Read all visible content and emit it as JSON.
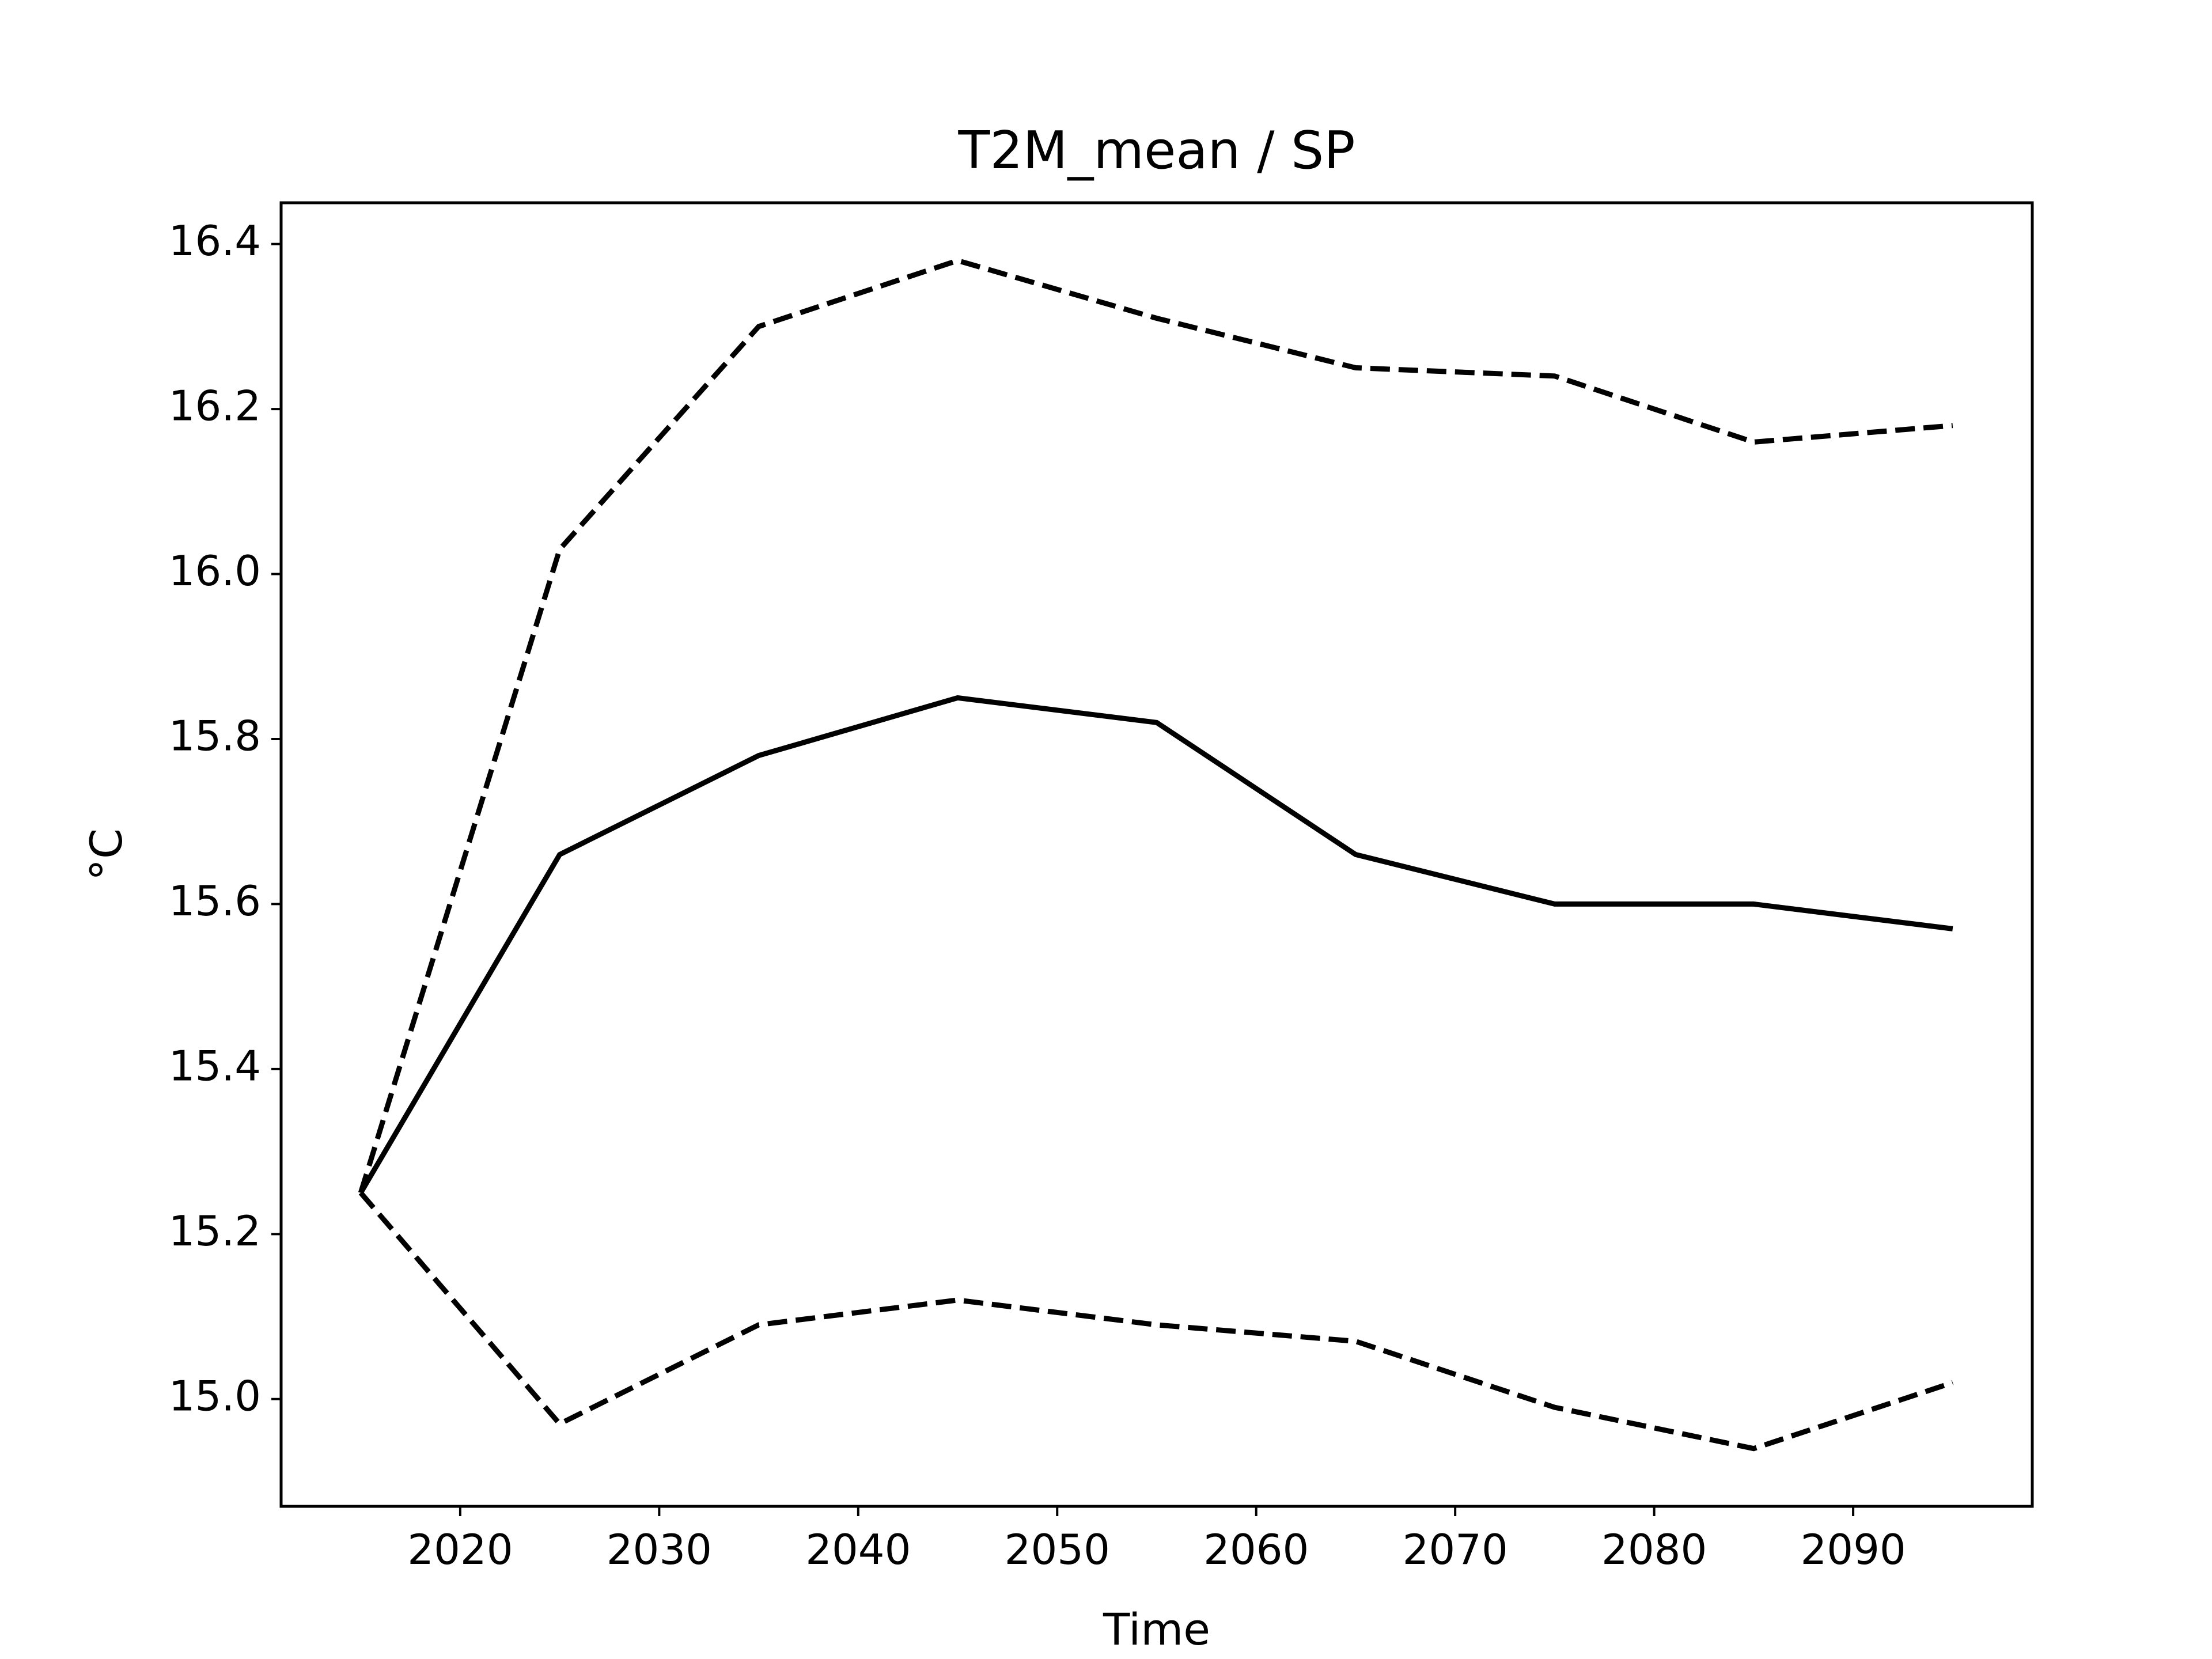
{
  "chart_data": {
    "type": "line",
    "title": "T2M_mean / SP",
    "xlabel": "Time",
    "ylabel": "°C",
    "xlim": [
      2011,
      2099
    ],
    "ylim": [
      14.87,
      16.45
    ],
    "xticks": [
      2020,
      2030,
      2040,
      2050,
      2060,
      2070,
      2080,
      2090
    ],
    "xtick_labels": [
      "2020",
      "2030",
      "2040",
      "2050",
      "2060",
      "2070",
      "2080",
      "2090"
    ],
    "yticks": [
      15.0,
      15.2,
      15.4,
      15.6,
      15.8,
      16.0,
      16.2,
      16.4
    ],
    "ytick_labels": [
      "15.0",
      "15.2",
      "15.4",
      "15.6",
      "15.8",
      "16.0",
      "16.2",
      "16.4"
    ],
    "grid": false,
    "line_color": "#000000",
    "x": [
      2015,
      2025,
      2035,
      2045,
      2055,
      2065,
      2075,
      2085,
      2095
    ],
    "series": [
      {
        "style": "solid",
        "values": [
          15.25,
          15.66,
          15.78,
          15.85,
          15.82,
          15.66,
          15.6,
          15.6,
          15.57
        ]
      },
      {
        "style": "dashed",
        "values": [
          15.25,
          16.03,
          16.3,
          16.38,
          16.31,
          16.25,
          16.24,
          16.16,
          16.18
        ]
      },
      {
        "style": "dashed",
        "values": [
          15.25,
          14.97,
          15.09,
          15.12,
          15.09,
          15.07,
          14.99,
          14.94,
          15.02
        ]
      }
    ]
  }
}
